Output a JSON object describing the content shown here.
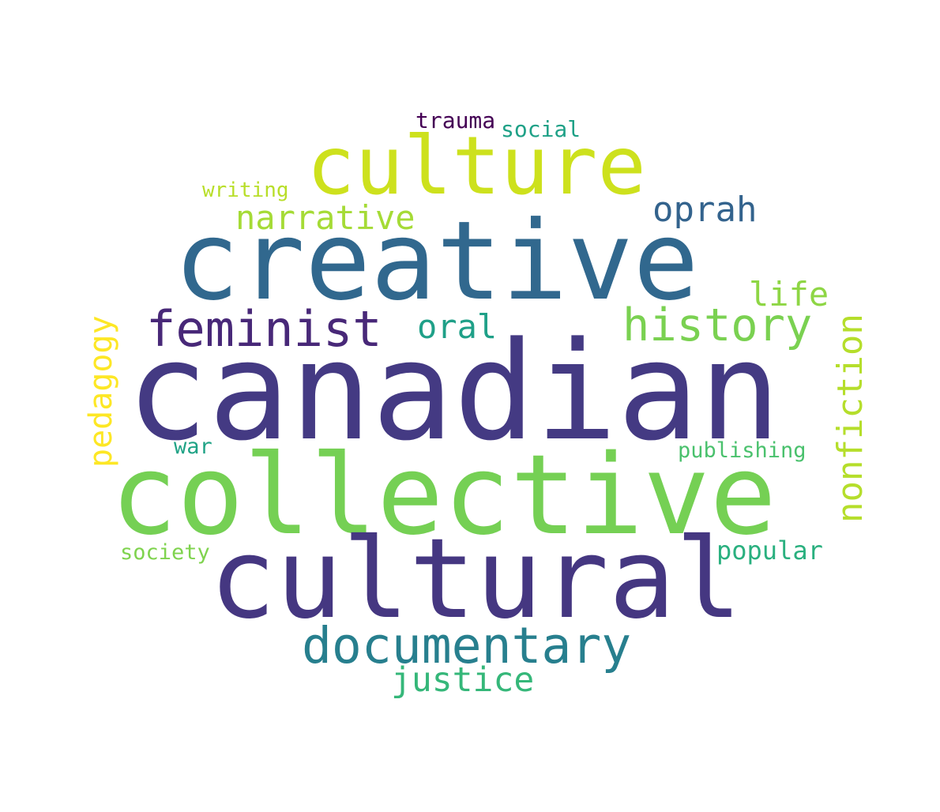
{
  "words": [
    {
      "id": "canadian",
      "text": "canadian",
      "color": "#443a83"
    },
    {
      "id": "collective",
      "text": "collective",
      "color": "#75d054"
    },
    {
      "id": "creative",
      "text": "creative",
      "color": "#31688e"
    },
    {
      "id": "cultural",
      "text": "cultural",
      "color": "#453781"
    },
    {
      "id": "culture",
      "text": "culture",
      "color": "#cde11d"
    },
    {
      "id": "documentary",
      "text": "documentary",
      "color": "#277f8e"
    },
    {
      "id": "feminist",
      "text": "feminist",
      "color": "#482878"
    },
    {
      "id": "history",
      "text": "history",
      "color": "#7ad151"
    },
    {
      "id": "nonfiction",
      "text": "nonfiction",
      "color": "#b5de2b"
    },
    {
      "id": "narrative",
      "text": "narrative",
      "color": "#a5db36"
    },
    {
      "id": "oprah",
      "text": "oprah",
      "color": "#33638d"
    },
    {
      "id": "pedagogy",
      "text": "pedagogy",
      "color": "#fde725"
    },
    {
      "id": "justice",
      "text": "justice",
      "color": "#35b779"
    },
    {
      "id": "life",
      "text": "life",
      "color": "#8ed645"
    },
    {
      "id": "oral",
      "text": "oral",
      "color": "#1fa088"
    },
    {
      "id": "popular",
      "text": "popular",
      "color": "#2ab07f"
    },
    {
      "id": "trauma",
      "text": "trauma",
      "color": "#440154"
    },
    {
      "id": "social",
      "text": "social",
      "color": "#1fa187"
    },
    {
      "id": "writing",
      "text": "writing",
      "color": "#b8de29"
    },
    {
      "id": "publishing",
      "text": "publishing",
      "color": "#4ac16d"
    },
    {
      "id": "war",
      "text": "war",
      "color": "#20a386"
    },
    {
      "id": "society",
      "text": "society",
      "color": "#7fd34e"
    }
  ]
}
